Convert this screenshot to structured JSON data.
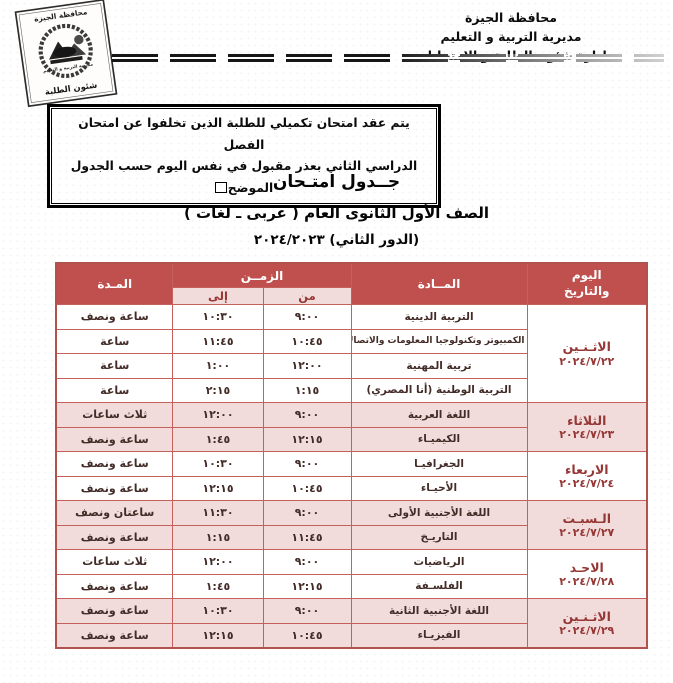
{
  "org_header": {
    "line1": "محافظة الجيزة",
    "line2": "مديرية التربية و التعليم",
    "line3": "ادارة شئون الطلبة و الامتحانات"
  },
  "stamp": {
    "top": "محافظة الجيزة",
    "middle": "مديرية التربية و التعليم",
    "bottom": "شئون الطلبة"
  },
  "notice": {
    "line1": "يتم عقد امتحان تكميلي للطلبة الذين تخلفوا عن امتحان الفصل",
    "line2": "الدراسي الثاني بعذر مقبول في نفس اليوم حسب الجدول الموضح",
    "end_icon": "empty-checkbox-icon"
  },
  "title": {
    "line1": "جــدول امتـحان",
    "line2": "الصف الأول الثانوى العام ( عربى ـ لغات )",
    "line3": "(الدور الثاني) ٢٠٢٤/٢٠٢٣"
  },
  "table": {
    "headers": {
      "day_line1": "اليوم",
      "day_line2": "والتاريخ",
      "subject": "المــادة",
      "time": "الزمــن",
      "from": "من",
      "to": "إلى",
      "duration": "المـدة"
    },
    "groups": [
      {
        "day": "الاثـنـين",
        "date": "٢٠٢٤/٧/٢٢",
        "shade": false,
        "rows": [
          {
            "subject": "التربية الدينية",
            "from": "٩:٠٠",
            "to": "١٠:٣٠",
            "duration": "ساعة ونصف"
          },
          {
            "subject": "الكمبيوتر وتكنولوجيا المعلومات والاتصالات",
            "from": "١٠:٤٥",
            "to": "١١:٤٥",
            "duration": "ساعة"
          },
          {
            "subject": "تربية المهنية",
            "from": "١٢:٠٠",
            "to": "١:٠٠",
            "duration": "ساعة"
          },
          {
            "subject": "التربية الوطنية (أنا المصري)",
            "from": "١:١٥",
            "to": "٢:١٥",
            "duration": "ساعة"
          }
        ]
      },
      {
        "day": "الثلاثاء",
        "date": "٢٠٢٤/٧/٢٣",
        "shade": true,
        "rows": [
          {
            "subject": "اللغة العربية",
            "from": "٩:٠٠",
            "to": "١٢:٠٠",
            "duration": "ثلاث ساعات"
          },
          {
            "subject": "الكيميـاء",
            "from": "١٢:١٥",
            "to": "١:٤٥",
            "duration": "ساعة ونصف"
          }
        ]
      },
      {
        "day": "الاربعاء",
        "date": "٢٠٢٤/٧/٢٤",
        "shade": false,
        "rows": [
          {
            "subject": "الجغرافيـا",
            "from": "٩:٠٠",
            "to": "١٠:٣٠",
            "duration": "ساعة ونصف"
          },
          {
            "subject": "الأحيـاء",
            "from": "١٠:٤٥",
            "to": "١٢:١٥",
            "duration": "ساعة ونصف"
          }
        ]
      },
      {
        "day": "الـسبـت",
        "date": "٢٠٢٤/٧/٢٧",
        "shade": true,
        "rows": [
          {
            "subject": "اللغة الأجنبية الأولى",
            "from": "٩:٠٠",
            "to": "١١:٣٠",
            "duration": "ساعتان ونصف"
          },
          {
            "subject": "التاريـخ",
            "from": "١١:٤٥",
            "to": "١:١٥",
            "duration": "ساعة ونصف"
          }
        ]
      },
      {
        "day": "الاحـد",
        "date": "٢٠٢٤/٧/٢٨",
        "shade": false,
        "rows": [
          {
            "subject": "الرياضيات",
            "from": "٩:٠٠",
            "to": "١٢:٠٠",
            "duration": "ثلاث ساعات"
          },
          {
            "subject": "الفلسـفة",
            "from": "١٢:١٥",
            "to": "١:٤٥",
            "duration": "ساعة ونصف"
          }
        ]
      },
      {
        "day": "الاثـنـين",
        "date": "٢٠٢٤/٧/٢٩",
        "shade": true,
        "rows": [
          {
            "subject": "اللغة الأجنبية الثانية",
            "from": "٩:٠٠",
            "to": "١٠:٣٠",
            "duration": "ساعة ونصف"
          },
          {
            "subject": "الفيزيـاء",
            "from": "١٠:٤٥",
            "to": "١٢:١٥",
            "duration": "ساعة ونصف"
          }
        ]
      }
    ]
  },
  "colors": {
    "header_bg": "#c0504d",
    "subheader_bg": "#f2dcdb",
    "row_shade": "#f2dcdb",
    "grid_line": "#c4615d",
    "day_text": "#953735",
    "body_text": "#432c27"
  }
}
